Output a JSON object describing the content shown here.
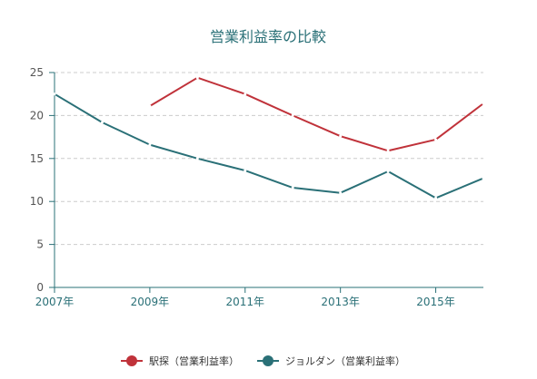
{
  "chart_data": {
    "type": "line",
    "title": "営業利益率の比較",
    "xlabel": "",
    "ylabel": "",
    "x": [
      2007,
      2008,
      2009,
      2010,
      2011,
      2012,
      2013,
      2014,
      2015,
      2016
    ],
    "x_tick_values": [
      2007,
      2009,
      2011,
      2013,
      2015
    ],
    "x_tick_labels": [
      "2007年",
      "2009年",
      "2011年",
      "2013年",
      "2015年"
    ],
    "ylim": [
      0,
      25
    ],
    "y_ticks": [
      0,
      5,
      10,
      15,
      20,
      25
    ],
    "grid": true,
    "legend_position": "bottom-center",
    "series": [
      {
        "name": "駅探（営業利益率）",
        "color": "#c0323a",
        "values": [
          null,
          null,
          21.1,
          24.4,
          22.5,
          20.0,
          17.6,
          15.9,
          17.2,
          21.4
        ]
      },
      {
        "name": "ジョルダン（営業利益率）",
        "color": "#2a7077",
        "values": [
          22.5,
          19.2,
          16.6,
          15.0,
          13.6,
          11.6,
          11.0,
          13.5,
          10.4,
          12.7
        ]
      }
    ]
  }
}
